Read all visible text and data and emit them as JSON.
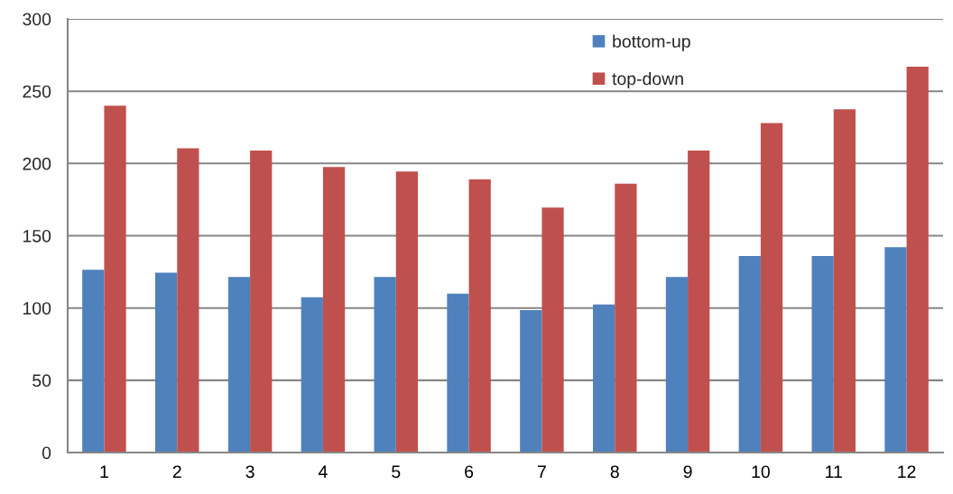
{
  "chart_data": {
    "type": "bar",
    "categories": [
      "1",
      "2",
      "3",
      "4",
      "5",
      "6",
      "7",
      "8",
      "9",
      "10",
      "11",
      "12"
    ],
    "series": [
      {
        "name": "bottom-up",
        "color": "#4f81bd",
        "values": [
          126.5,
          124.5,
          121.5,
          107.5,
          121.5,
          110,
          98.5,
          102.5,
          121.5,
          136,
          136,
          142
        ]
      },
      {
        "name": "top-down",
        "color": "#c0504d",
        "values": [
          240,
          210.5,
          209,
          197.5,
          194.5,
          189,
          169.5,
          186,
          209,
          228,
          237.5,
          267
        ]
      }
    ],
    "ylim": [
      0,
      300
    ],
    "yticks": [
      0,
      50,
      100,
      150,
      200,
      250,
      300
    ],
    "grid": "y",
    "legend": "top right"
  }
}
